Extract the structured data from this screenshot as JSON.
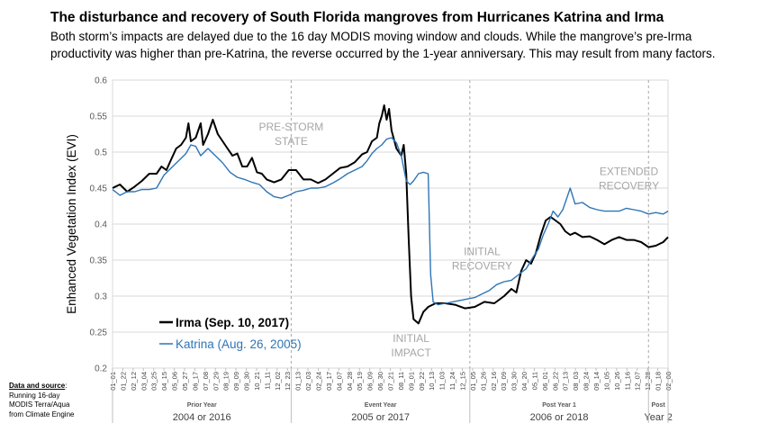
{
  "header": {
    "title": "The disturbance and recovery of South Florida mangroves from Hurricanes Katrina and Irma",
    "subtitle_line1": "Both storm’s impacts are delayed due to the 16 day MODIS moving window and clouds. While the mangrove’s pre-Irma",
    "subtitle_line2": "productivity was higher than pre-Katrina, the reverse occurred by the 1-year anniversary.  This may result from many factors."
  },
  "source_note": {
    "heading": "Data and source",
    "line1": "Running 16-day",
    "line2": "MODIS Terra/Aqua",
    "line3": "from Climate Engine"
  },
  "colors": {
    "irma": "#000000",
    "katrina": "#2e75b6",
    "annotation": "#a6a6a6",
    "grid": "#d9d9d9"
  },
  "chart_data": {
    "type": "line",
    "ylabel": "Enhanced Vegetation Index (EVI)",
    "ylim": [
      0.2,
      0.6
    ],
    "yticks": [
      "0.2",
      "0.25",
      "0.3",
      "0.35",
      "0.4",
      "0.45",
      "0.5",
      "0.55",
      "0.6"
    ],
    "x_tick_labels": [
      "01_01",
      "01_22",
      "02_12",
      "03_04",
      "03_25",
      "04_15",
      "05_06",
      "05_27",
      "06_17",
      "07_08",
      "07_29",
      "08_19",
      "09_09",
      "09_30",
      "10_21",
      "11_11",
      "12_02",
      "12_23",
      "01_13",
      "02_03",
      "02_24",
      "03_17",
      "04_07",
      "04_28",
      "05_19",
      "06_09",
      "06_30",
      "07_21",
      "08_11",
      "09_01",
      "09_22",
      "10_13",
      "11_03",
      "11_24",
      "12_15",
      "01_05",
      "01_26",
      "02_16",
      "03_09",
      "03_30",
      "04_20",
      "05_11",
      "06_01",
      "06_22",
      "07_13",
      "08_03",
      "08_24",
      "09_14",
      "10_05",
      "10_26",
      "11_16",
      "12_07",
      "12_28",
      "01_18",
      "02_08"
    ],
    "x_days_range": [
      0,
      1135
    ],
    "periods": [
      {
        "label": "Prior Year",
        "years": "2004 or 2016",
        "start": 0,
        "end": 365
      },
      {
        "label": "Event Year",
        "years": "2005 or 2017",
        "start": 365,
        "end": 730
      },
      {
        "label": "Post Year 1",
        "years": "2006 or 2018",
        "start": 730,
        "end": 1095
      },
      {
        "label": "Post",
        "years": "Year 2",
        "start": 1095,
        "end": 1135
      }
    ],
    "annotations": [
      {
        "lines": [
          "PRE-STORM",
          "STATE"
        ],
        "x": 365,
        "y": 0.53
      },
      {
        "lines": [
          "INITIAL",
          "IMPACT"
        ],
        "x": 610,
        "y": 0.236
      },
      {
        "lines": [
          "INITIAL",
          "RECOVERY"
        ],
        "x": 755,
        "y": 0.357
      },
      {
        "lines": [
          "EXTENDED",
          "RECOVERY"
        ],
        "x": 1055,
        "y": 0.468
      }
    ],
    "series": [
      {
        "name": "Irma (Sep. 10, 2017)",
        "color": "#000000",
        "points": [
          [
            0,
            0.45
          ],
          [
            15,
            0.455
          ],
          [
            30,
            0.445
          ],
          [
            45,
            0.452
          ],
          [
            60,
            0.46
          ],
          [
            75,
            0.47
          ],
          [
            90,
            0.47
          ],
          [
            100,
            0.48
          ],
          [
            110,
            0.475
          ],
          [
            120,
            0.49
          ],
          [
            130,
            0.505
          ],
          [
            140,
            0.51
          ],
          [
            150,
            0.52
          ],
          [
            155,
            0.54
          ],
          [
            160,
            0.515
          ],
          [
            170,
            0.52
          ],
          [
            180,
            0.54
          ],
          [
            185,
            0.51
          ],
          [
            195,
            0.525
          ],
          [
            205,
            0.545
          ],
          [
            215,
            0.525
          ],
          [
            225,
            0.515
          ],
          [
            235,
            0.505
          ],
          [
            245,
            0.495
          ],
          [
            255,
            0.498
          ],
          [
            265,
            0.48
          ],
          [
            275,
            0.48
          ],
          [
            285,
            0.492
          ],
          [
            295,
            0.472
          ],
          [
            305,
            0.47
          ],
          [
            315,
            0.462
          ],
          [
            330,
            0.458
          ],
          [
            345,
            0.462
          ],
          [
            360,
            0.475
          ],
          [
            375,
            0.475
          ],
          [
            390,
            0.462
          ],
          [
            405,
            0.462
          ],
          [
            420,
            0.457
          ],
          [
            435,
            0.462
          ],
          [
            450,
            0.47
          ],
          [
            465,
            0.478
          ],
          [
            480,
            0.48
          ],
          [
            495,
            0.486
          ],
          [
            510,
            0.497
          ],
          [
            520,
            0.5
          ],
          [
            530,
            0.515
          ],
          [
            540,
            0.52
          ],
          [
            545,
            0.54
          ],
          [
            550,
            0.55
          ],
          [
            555,
            0.565
          ],
          [
            560,
            0.545
          ],
          [
            565,
            0.56
          ],
          [
            570,
            0.53
          ],
          [
            580,
            0.505
          ],
          [
            590,
            0.495
          ],
          [
            595,
            0.51
          ],
          [
            600,
            0.47
          ],
          [
            605,
            0.38
          ],
          [
            610,
            0.3
          ],
          [
            615,
            0.268
          ],
          [
            625,
            0.262
          ],
          [
            635,
            0.278
          ],
          [
            645,
            0.285
          ],
          [
            660,
            0.29
          ],
          [
            680,
            0.29
          ],
          [
            700,
            0.288
          ],
          [
            720,
            0.283
          ],
          [
            740,
            0.285
          ],
          [
            760,
            0.292
          ],
          [
            780,
            0.29
          ],
          [
            800,
            0.3
          ],
          [
            815,
            0.31
          ],
          [
            825,
            0.305
          ],
          [
            835,
            0.335
          ],
          [
            845,
            0.35
          ],
          [
            855,
            0.345
          ],
          [
            865,
            0.36
          ],
          [
            875,
            0.385
          ],
          [
            885,
            0.405
          ],
          [
            895,
            0.41
          ],
          [
            905,
            0.405
          ],
          [
            915,
            0.4
          ],
          [
            925,
            0.39
          ],
          [
            935,
            0.385
          ],
          [
            945,
            0.388
          ],
          [
            960,
            0.382
          ],
          [
            975,
            0.383
          ],
          [
            990,
            0.378
          ],
          [
            1005,
            0.372
          ],
          [
            1020,
            0.378
          ],
          [
            1035,
            0.382
          ],
          [
            1050,
            0.378
          ],
          [
            1065,
            0.378
          ],
          [
            1080,
            0.375
          ],
          [
            1095,
            0.368
          ],
          [
            1110,
            0.37
          ],
          [
            1125,
            0.375
          ],
          [
            1135,
            0.382
          ]
        ]
      },
      {
        "name": "Katrina (Aug. 26, 2005)",
        "color": "#2e75b6",
        "points": [
          [
            0,
            0.448
          ],
          [
            15,
            0.44
          ],
          [
            30,
            0.445
          ],
          [
            45,
            0.445
          ],
          [
            60,
            0.448
          ],
          [
            75,
            0.448
          ],
          [
            90,
            0.45
          ],
          [
            105,
            0.468
          ],
          [
            120,
            0.478
          ],
          [
            135,
            0.488
          ],
          [
            150,
            0.498
          ],
          [
            160,
            0.51
          ],
          [
            170,
            0.508
          ],
          [
            180,
            0.495
          ],
          [
            195,
            0.505
          ],
          [
            210,
            0.495
          ],
          [
            225,
            0.485
          ],
          [
            240,
            0.472
          ],
          [
            255,
            0.465
          ],
          [
            270,
            0.462
          ],
          [
            285,
            0.458
          ],
          [
            300,
            0.455
          ],
          [
            315,
            0.445
          ],
          [
            330,
            0.438
          ],
          [
            345,
            0.436
          ],
          [
            360,
            0.44
          ],
          [
            375,
            0.445
          ],
          [
            390,
            0.447
          ],
          [
            405,
            0.45
          ],
          [
            420,
            0.45
          ],
          [
            435,
            0.452
          ],
          [
            450,
            0.457
          ],
          [
            465,
            0.463
          ],
          [
            480,
            0.47
          ],
          [
            495,
            0.475
          ],
          [
            510,
            0.48
          ],
          [
            520,
            0.488
          ],
          [
            530,
            0.498
          ],
          [
            540,
            0.505
          ],
          [
            550,
            0.51
          ],
          [
            560,
            0.518
          ],
          [
            570,
            0.52
          ],
          [
            580,
            0.513
          ],
          [
            590,
            0.495
          ],
          [
            600,
            0.46
          ],
          [
            608,
            0.455
          ],
          [
            615,
            0.46
          ],
          [
            625,
            0.47
          ],
          [
            635,
            0.472
          ],
          [
            645,
            0.47
          ],
          [
            650,
            0.33
          ],
          [
            655,
            0.292
          ],
          [
            665,
            0.288
          ],
          [
            680,
            0.29
          ],
          [
            695,
            0.292
          ],
          [
            710,
            0.294
          ],
          [
            725,
            0.296
          ],
          [
            740,
            0.298
          ],
          [
            755,
            0.303
          ],
          [
            770,
            0.308
          ],
          [
            785,
            0.316
          ],
          [
            800,
            0.32
          ],
          [
            815,
            0.322
          ],
          [
            830,
            0.33
          ],
          [
            845,
            0.338
          ],
          [
            860,
            0.355
          ],
          [
            870,
            0.365
          ],
          [
            880,
            0.385
          ],
          [
            890,
            0.4
          ],
          [
            900,
            0.418
          ],
          [
            910,
            0.41
          ],
          [
            920,
            0.42
          ],
          [
            930,
            0.44
          ],
          [
            935,
            0.45
          ],
          [
            945,
            0.428
          ],
          [
            960,
            0.43
          ],
          [
            975,
            0.423
          ],
          [
            990,
            0.42
          ],
          [
            1005,
            0.418
          ],
          [
            1020,
            0.418
          ],
          [
            1035,
            0.418
          ],
          [
            1050,
            0.422
          ],
          [
            1065,
            0.42
          ],
          [
            1080,
            0.418
          ],
          [
            1095,
            0.414
          ],
          [
            1110,
            0.416
          ],
          [
            1125,
            0.414
          ],
          [
            1135,
            0.418
          ]
        ]
      }
    ]
  }
}
